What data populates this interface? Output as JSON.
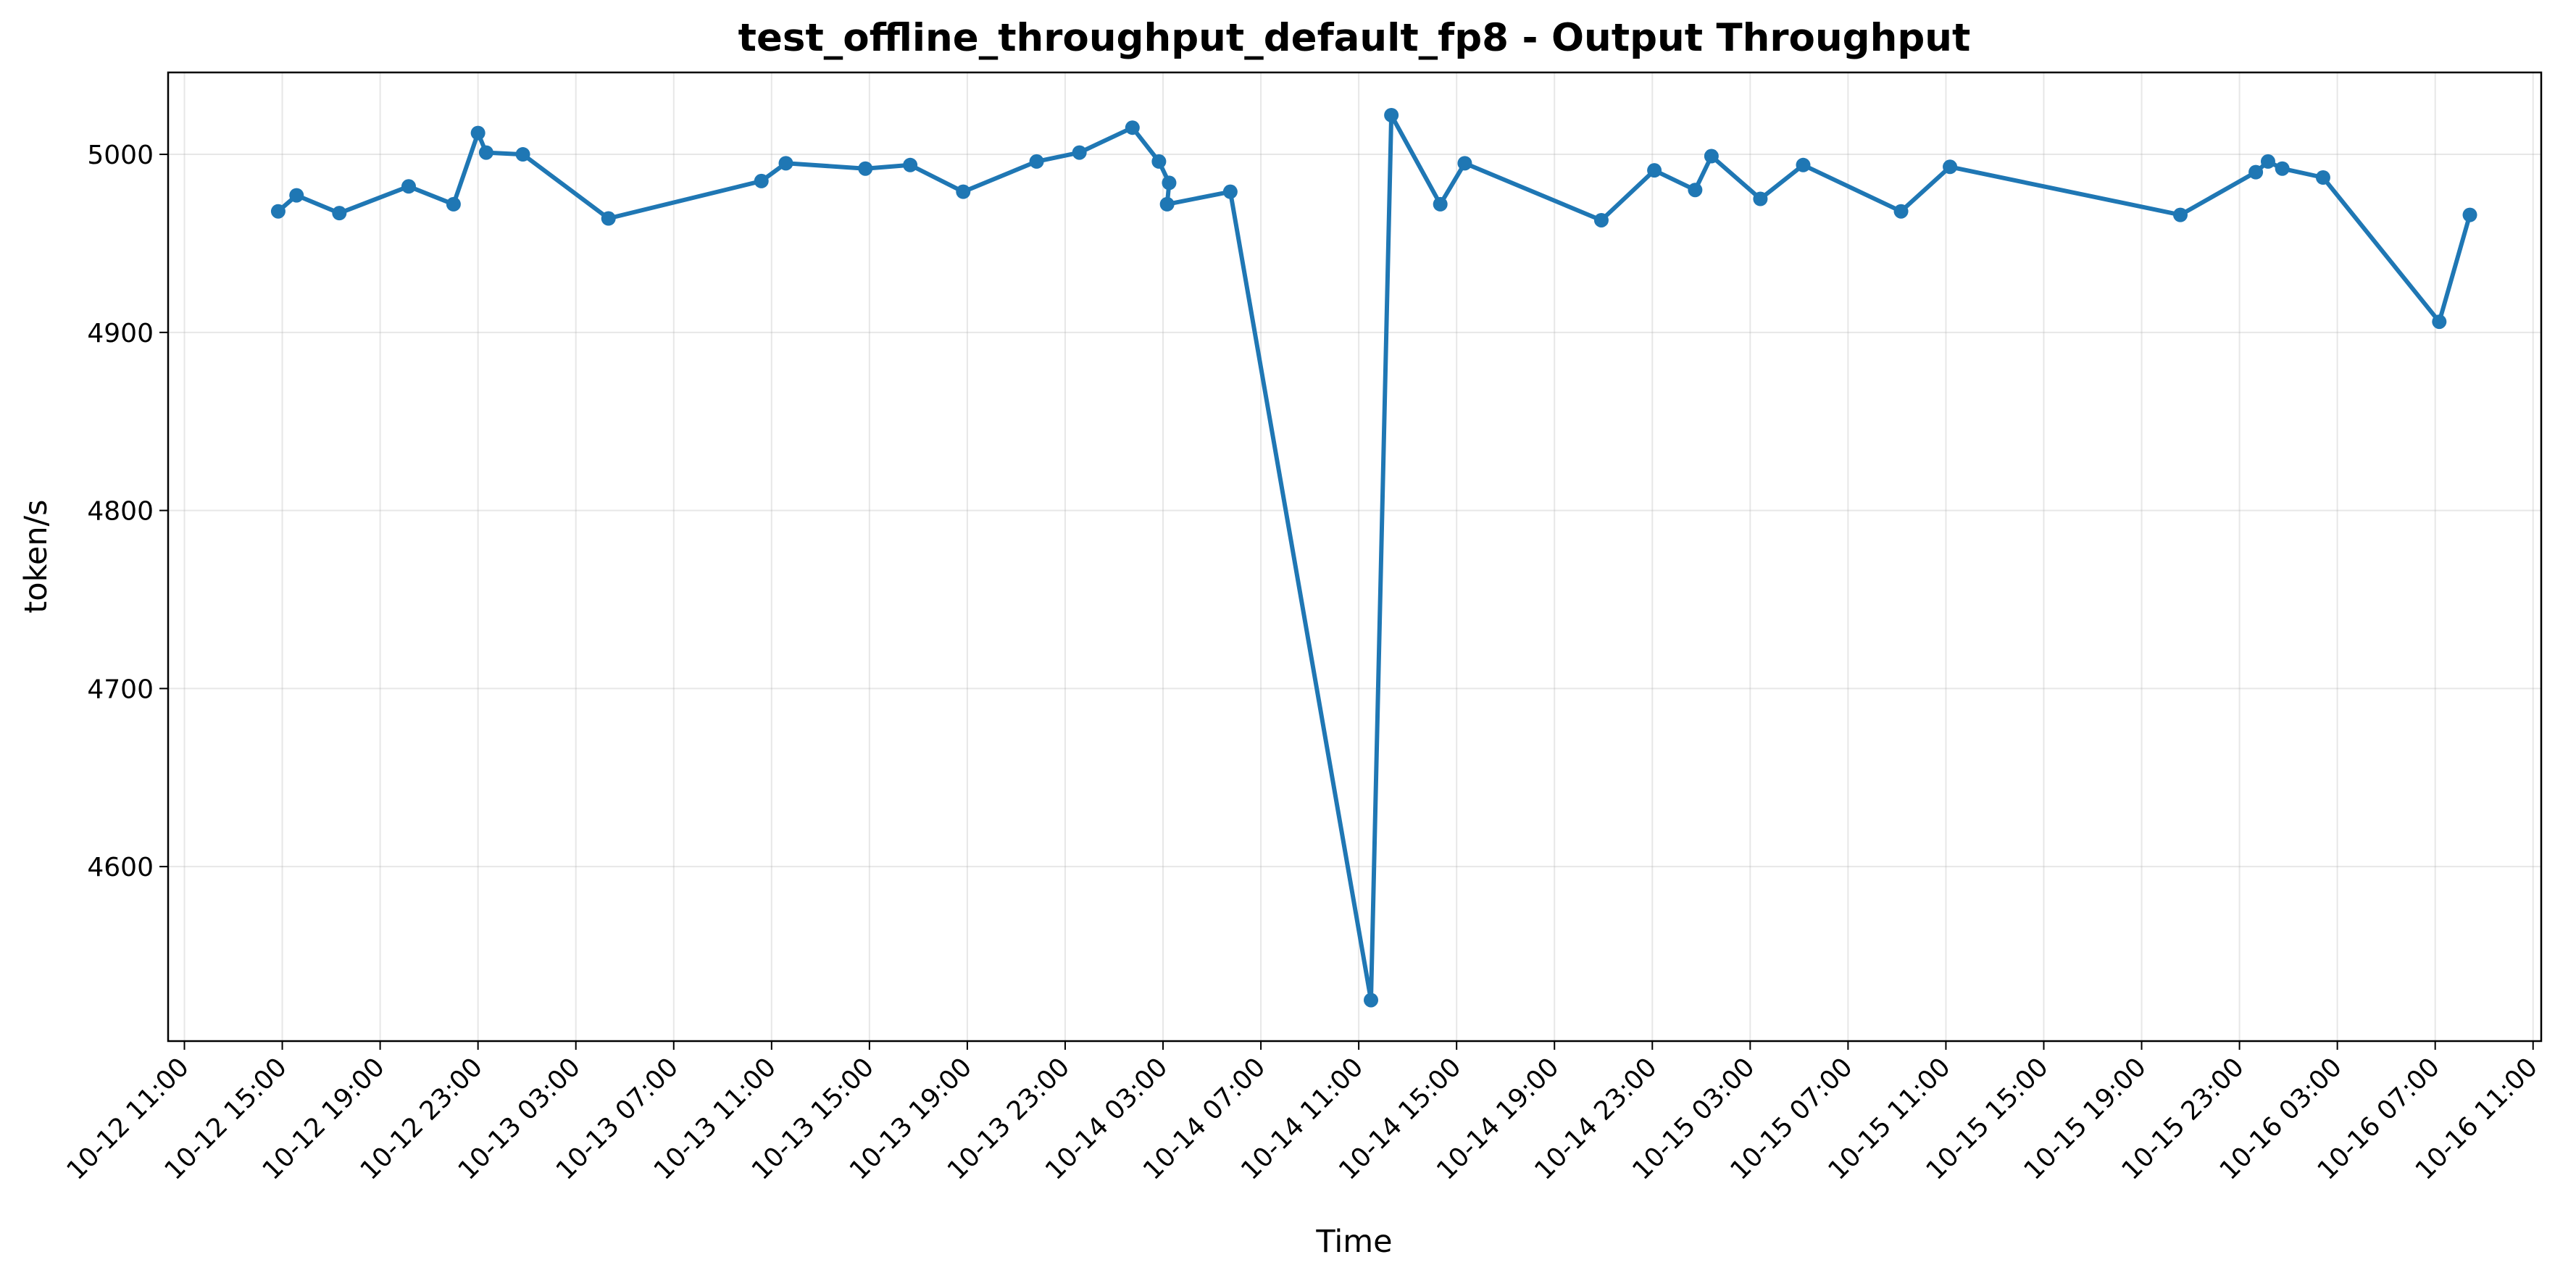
{
  "chart_data": {
    "type": "line",
    "title": "test_offline_throughput_default_fp8 - Output Throughput",
    "xlabel": "Time",
    "ylabel": "token/s",
    "grid": true,
    "line_color": "#1f77b4",
    "x_ticks": [
      "10-12 11:00",
      "10-12 15:00",
      "10-12 19:00",
      "10-12 23:00",
      "10-13 03:00",
      "10-13 07:00",
      "10-13 11:00",
      "10-13 15:00",
      "10-13 19:00",
      "10-13 23:00",
      "10-14 03:00",
      "10-14 07:00",
      "10-14 11:00",
      "10-14 15:00",
      "10-14 19:00",
      "10-14 23:00",
      "10-15 03:00",
      "10-15 07:00",
      "10-15 11:00",
      "10-15 15:00",
      "10-15 19:00",
      "10-15 23:00",
      "10-16 03:00",
      "10-16 07:00",
      "10-16 11:00"
    ],
    "xlim": [
      "10-12 10:20",
      "10-16 11:20"
    ],
    "y_ticks": [
      4600,
      4700,
      4800,
      4900,
      5000
    ],
    "ylim": [
      4502,
      5046
    ],
    "series": [
      {
        "points": [
          {
            "x": "10-12 14:50",
            "y": 4968
          },
          {
            "x": "10-12 15:35",
            "y": 4977
          },
          {
            "x": "10-12 17:20",
            "y": 4967
          },
          {
            "x": "10-12 20:10",
            "y": 4982
          },
          {
            "x": "10-12 22:00",
            "y": 4972
          },
          {
            "x": "10-12 23:00",
            "y": 5012
          },
          {
            "x": "10-12 23:20",
            "y": 5001
          },
          {
            "x": "10-13 00:50",
            "y": 5000
          },
          {
            "x": "10-13 04:20",
            "y": 4964
          },
          {
            "x": "10-13 10:35",
            "y": 4985
          },
          {
            "x": "10-13 11:35",
            "y": 4995
          },
          {
            "x": "10-13 14:50",
            "y": 4992
          },
          {
            "x": "10-13 16:40",
            "y": 4994
          },
          {
            "x": "10-13 18:50",
            "y": 4979
          },
          {
            "x": "10-13 21:50",
            "y": 4996
          },
          {
            "x": "10-13 23:35",
            "y": 5001
          },
          {
            "x": "10-14 01:45",
            "y": 5015
          },
          {
            "x": "10-14 02:50",
            "y": 4996
          },
          {
            "x": "10-14 03:15",
            "y": 4984
          },
          {
            "x": "10-14 03:10",
            "y": 4972
          },
          {
            "x": "10-14 05:45",
            "y": 4979
          },
          {
            "x": "10-14 11:30",
            "y": 4525
          },
          {
            "x": "10-14 12:20",
            "y": 5022
          },
          {
            "x": "10-14 14:20",
            "y": 4972
          },
          {
            "x": "10-14 15:20",
            "y": 4995
          },
          {
            "x": "10-14 20:55",
            "y": 4963
          },
          {
            "x": "10-14 23:05",
            "y": 4991
          },
          {
            "x": "10-15 00:45",
            "y": 4980
          },
          {
            "x": "10-15 01:25",
            "y": 4999
          },
          {
            "x": "10-15 03:25",
            "y": 4975
          },
          {
            "x": "10-15 05:10",
            "y": 4994
          },
          {
            "x": "10-15 09:10",
            "y": 4968
          },
          {
            "x": "10-15 11:10",
            "y": 4993
          },
          {
            "x": "10-15 20:35",
            "y": 4966
          },
          {
            "x": "10-15 23:40",
            "y": 4990
          },
          {
            "x": "10-16 00:10",
            "y": 4996
          },
          {
            "x": "10-16 00:45",
            "y": 4992
          },
          {
            "x": "10-16 02:25",
            "y": 4987
          },
          {
            "x": "10-16 07:10",
            "y": 4906
          },
          {
            "x": "10-16 08:25",
            "y": 4966
          }
        ]
      }
    ]
  }
}
